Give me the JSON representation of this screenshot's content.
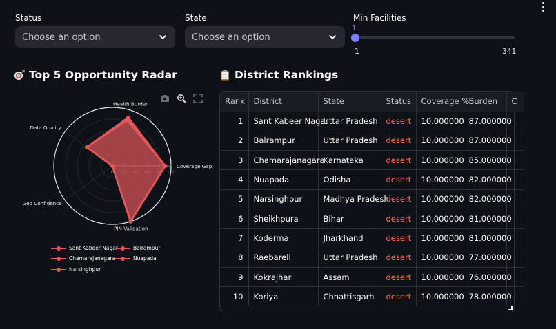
{
  "filters": {
    "status": {
      "label": "Status",
      "placeholder": "Choose an option"
    },
    "state": {
      "label": "State",
      "placeholder": "Choose an option"
    },
    "facilities": {
      "label": "Min Facilities",
      "value": "1",
      "min": "1",
      "max": "341",
      "fraction": 0
    }
  },
  "radar_section": {
    "title": "Top 5 Opportunity Radar"
  },
  "table_section": {
    "title": "District Rankings"
  },
  "chart_data": {
    "type": "radar",
    "axes": [
      "Coverage Gap",
      "Health Burden",
      "Data Quality",
      "Geo Confidence",
      "PIN Validation"
    ],
    "radial_ticks": [
      "0",
      "20",
      "40",
      "60",
      "80",
      "100"
    ],
    "range": [
      0,
      100
    ],
    "color": "#e15759",
    "series": [
      {
        "name": "Sant Kabeer Nagar",
        "values": [
          90,
          87,
          54,
          0,
          100
        ]
      },
      {
        "name": "Balrampur",
        "values": [
          90,
          87,
          54,
          0,
          100
        ]
      },
      {
        "name": "Chamarajanagara",
        "values": [
          90,
          85,
          54,
          0,
          100
        ]
      },
      {
        "name": "Nuapada",
        "values": [
          90,
          82,
          54,
          0,
          100
        ]
      },
      {
        "name": "Narsinghpur",
        "values": [
          90,
          82,
          54,
          0,
          100
        ]
      }
    ]
  },
  "table": {
    "columns": [
      "Rank",
      "District",
      "State",
      "Status",
      "Coverage %",
      "Burden",
      "C"
    ],
    "rows": [
      [
        "1",
        "Sant Kabeer Nagar",
        "Uttar Pradesh",
        "desert",
        "10.000000",
        "87.000000",
        ""
      ],
      [
        "2",
        "Balrampur",
        "Uttar Pradesh",
        "desert",
        "10.000000",
        "87.000000",
        ""
      ],
      [
        "3",
        "Chamarajanagara",
        "Karnataka",
        "desert",
        "10.000000",
        "85.000000",
        ""
      ],
      [
        "4",
        "Nuapada",
        "Odisha",
        "desert",
        "10.000000",
        "82.000000",
        ""
      ],
      [
        "5",
        "Narsinghpur",
        "Madhya Pradesh",
        "desert",
        "10.000000",
        "82.000000",
        ""
      ],
      [
        "6",
        "Sheikhpura",
        "Bihar",
        "desert",
        "10.000000",
        "81.000000",
        ""
      ],
      [
        "7",
        "Koderma",
        "Jharkhand",
        "desert",
        "10.000000",
        "81.000000",
        ""
      ],
      [
        "8",
        "Raebareli",
        "Uttar Pradesh",
        "desert",
        "10.000000",
        "77.000000",
        ""
      ],
      [
        "9",
        "Kokrajhar",
        "Assam",
        "desert",
        "10.000000",
        "76.000000",
        ""
      ],
      [
        "10",
        "Koriya",
        "Chhattisgarh",
        "desert",
        "10.000000",
        "78.000000",
        ""
      ]
    ]
  },
  "colors": {
    "accent": "#7a80ff",
    "status_desert": "#ff6b5a",
    "series": "#e15759"
  }
}
